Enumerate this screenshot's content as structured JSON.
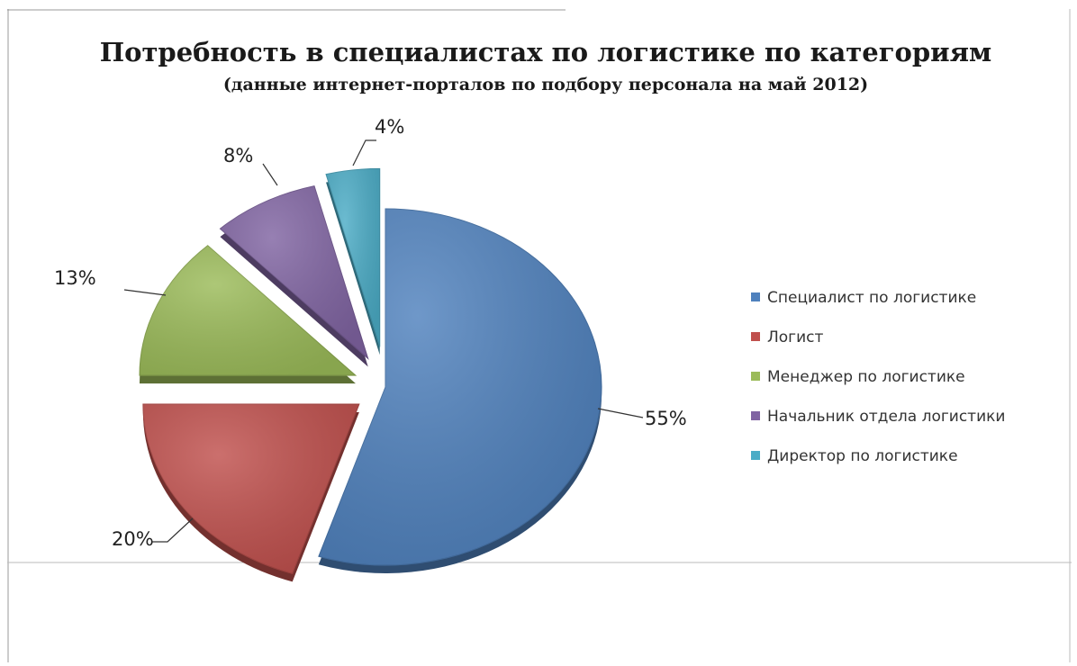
{
  "chart_data": {
    "type": "pie",
    "title": "Потребность в специалистах по логистике по категориям",
    "subtitle": "(данные интернет-порталов по подбору персонала на май 2012)",
    "categories": [
      "Специалист по логистике",
      "Логист",
      "Менеджер по логистике",
      "Начальник  отдела логистики",
      "Директор  по логистике"
    ],
    "values": [
      55,
      20,
      13,
      8,
      4
    ],
    "labels": [
      "55%",
      "20%",
      "13%",
      "8%",
      "4%"
    ],
    "colors": [
      "#4f81bd",
      "#c0504d",
      "#9bbb59",
      "#8064a2",
      "#4bacc6"
    ],
    "exploded": true,
    "legend_position": "right"
  }
}
